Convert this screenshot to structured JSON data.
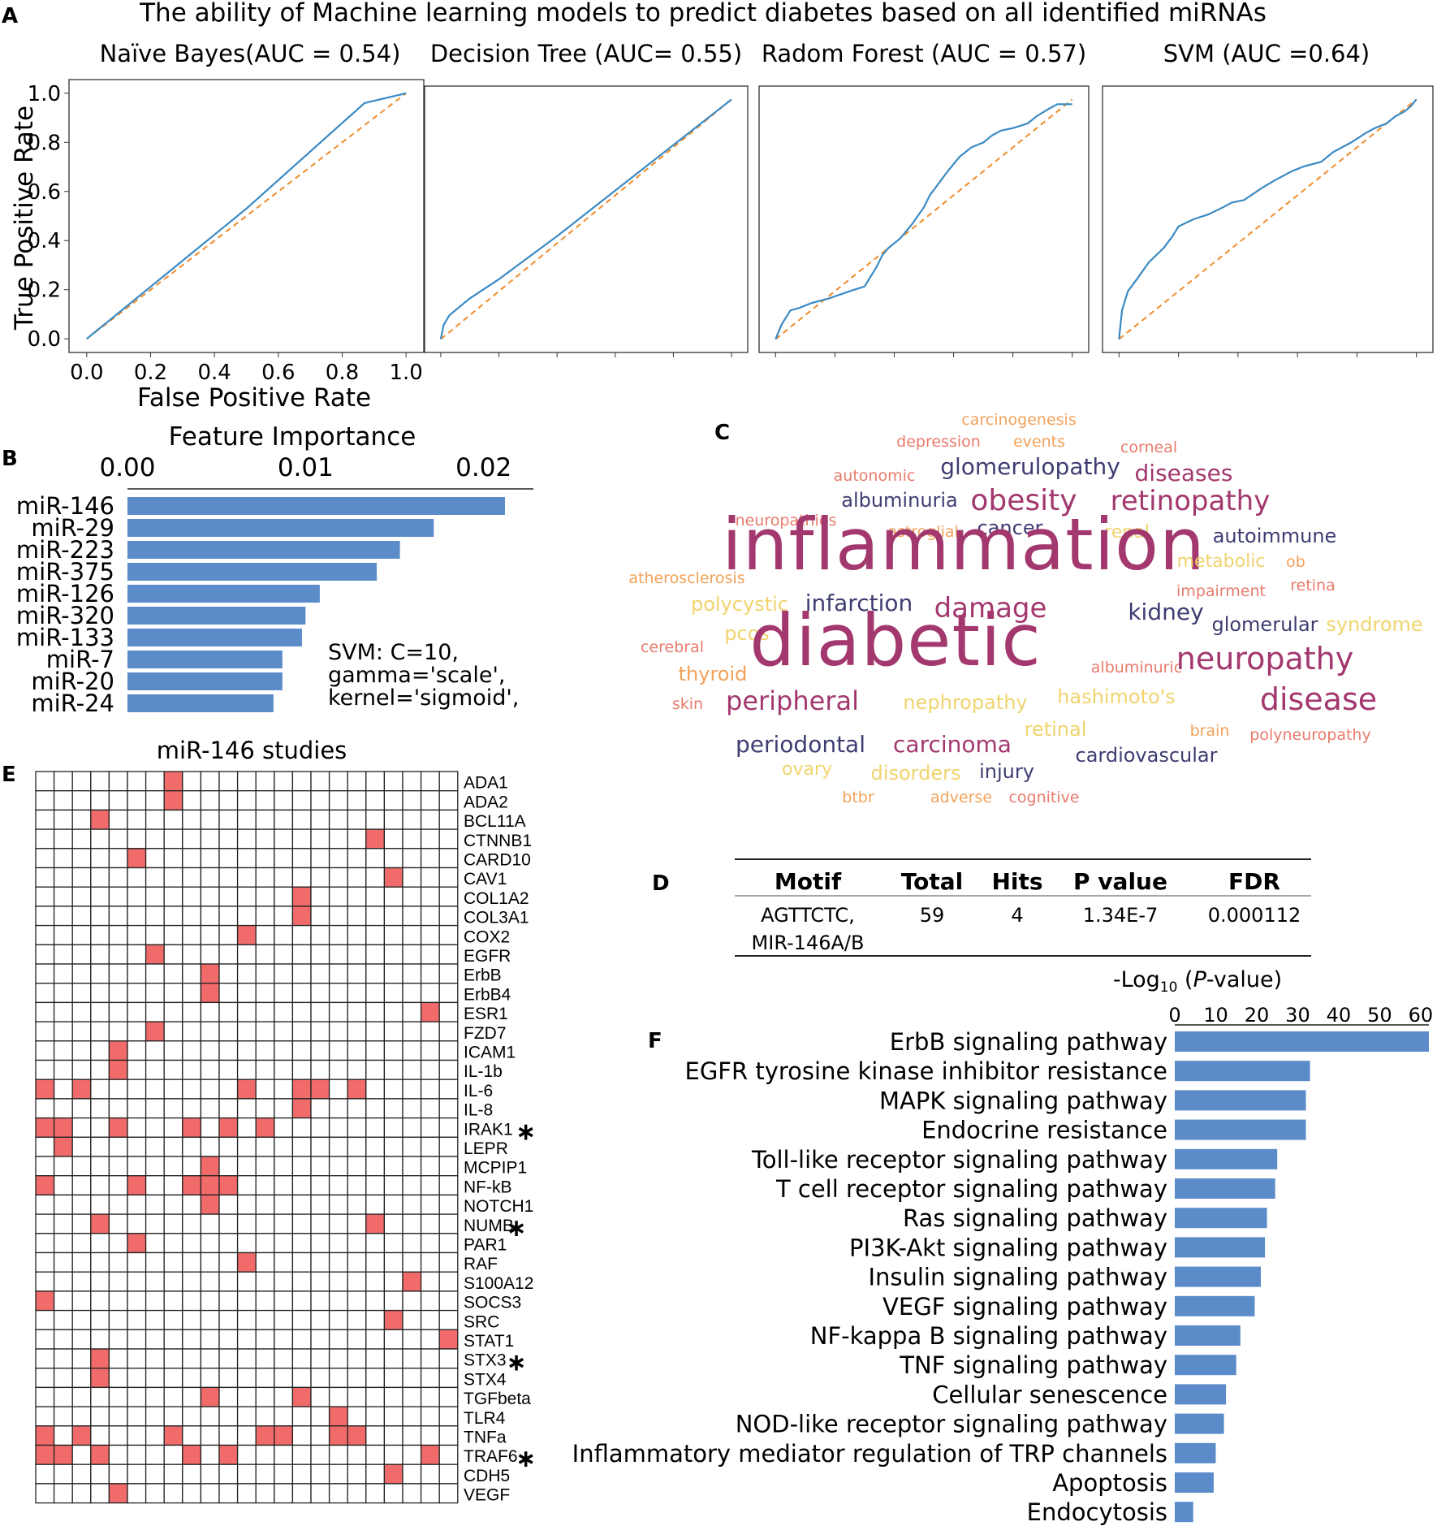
{
  "colors": {
    "roc_line": "#3b8ac4",
    "diagonal": "#f08c2b",
    "bar": "#5b8cc9",
    "heat_on": "#f26b6b",
    "heat_off": "#ffffff",
    "wc_purple": "#a3386f",
    "wc_navy": "#3e3d72",
    "wc_salmon": "#e77b6c",
    "wc_yellow": "#f0d46e",
    "wc_orange": "#f2a25a"
  },
  "panel_labels": {
    "a": "A",
    "b": "B",
    "c": "C",
    "d": "D",
    "e": "E",
    "f": "F"
  },
  "chart_data": [
    {
      "panel": "A",
      "type": "line",
      "title": "The ability of Machine learning models to predict diabetes based on all identified miRNAs",
      "xlabel": "False Positive Rate",
      "ylabel": "True Positive Rate",
      "xlim": [
        0,
        1
      ],
      "ylim": [
        0,
        1
      ],
      "ticks": [
        "0.0",
        "0.2",
        "0.4",
        "0.6",
        "0.8",
        "1.0"
      ],
      "subplots": [
        {
          "title": "Naïve Bayes(AUC = 0.54)",
          "x": [
            0,
            0.5,
            0.87,
            1.0
          ],
          "y": [
            0,
            0.53,
            0.96,
            1.0
          ]
        },
        {
          "title": "Decision Tree (AUC= 0.55)",
          "x": [
            0,
            0.01,
            0.03,
            0.06,
            0.1,
            0.2,
            0.4,
            0.6,
            0.8,
            1.0
          ],
          "y": [
            0,
            0.06,
            0.1,
            0.13,
            0.17,
            0.25,
            0.43,
            0.62,
            0.81,
            1.0
          ]
        },
        {
          "title": "Radom Forest (AUC = 0.57)",
          "x": [
            0,
            0.02,
            0.05,
            0.08,
            0.12,
            0.18,
            0.25,
            0.3,
            0.34,
            0.36,
            0.38,
            0.42,
            0.46,
            0.5,
            0.52,
            0.55,
            0.58,
            0.6,
            0.62,
            0.64,
            0.66,
            0.7,
            0.73,
            0.76,
            0.8,
            0.85,
            0.88,
            0.92,
            0.95,
            1.0
          ],
          "y": [
            0,
            0.06,
            0.12,
            0.13,
            0.15,
            0.17,
            0.2,
            0.22,
            0.3,
            0.35,
            0.38,
            0.42,
            0.48,
            0.55,
            0.6,
            0.65,
            0.7,
            0.73,
            0.76,
            0.78,
            0.8,
            0.82,
            0.85,
            0.87,
            0.88,
            0.9,
            0.93,
            0.96,
            0.98,
            0.98
          ]
        },
        {
          "title": "SVM (AUC =0.64)",
          "x": [
            0,
            0.01,
            0.03,
            0.06,
            0.1,
            0.15,
            0.18,
            0.2,
            0.25,
            0.3,
            0.35,
            0.38,
            0.42,
            0.48,
            0.52,
            0.58,
            0.62,
            0.68,
            0.72,
            0.78,
            0.83,
            0.86,
            0.9,
            0.93,
            0.96,
            0.98,
            1.0
          ],
          "y": [
            0,
            0.12,
            0.2,
            0.25,
            0.32,
            0.38,
            0.43,
            0.47,
            0.5,
            0.52,
            0.55,
            0.57,
            0.58,
            0.63,
            0.66,
            0.7,
            0.72,
            0.74,
            0.78,
            0.82,
            0.86,
            0.88,
            0.9,
            0.93,
            0.95,
            0.97,
            1.0
          ]
        }
      ]
    },
    {
      "panel": "B",
      "type": "bar",
      "orientation": "horizontal",
      "title": "Feature Importance",
      "xlim": [
        0,
        0.0212
      ],
      "ticks": [
        "0.00",
        "0.01",
        "0.02"
      ],
      "categories": [
        "miR-146",
        "miR-29",
        "miR-223",
        "miR-375",
        "miR-126",
        "miR-320",
        "miR-133",
        "miR-7",
        "miR-20",
        "miR-24"
      ],
      "values": [
        0.0212,
        0.0172,
        0.0153,
        0.014,
        0.0108,
        0.01,
        0.0098,
        0.0087,
        0.0087,
        0.0082
      ],
      "annotation": [
        "SVM: C=10,",
        "gamma='scale',",
        "kernel='sigmoid',"
      ]
    },
    {
      "panel": "E",
      "type": "heatmap",
      "title": "miR-146 studies",
      "columns": 23,
      "rows": [
        "ADA1",
        "ADA2",
        "BCL11A",
        "CTNNB1",
        "CARD10",
        "CAV1",
        "COL1A2",
        "COL3A1",
        "COX2",
        "EGFR",
        "ErbB",
        "ErbB4",
        "ESR1",
        "FZD7",
        "ICAM1",
        "IL-1b",
        "IL-6",
        "IL-8",
        "IRAK1",
        "LEPR",
        "MCPIP1",
        "NF-kB",
        "NOTCH1",
        "NUMB",
        "PAR1",
        "RAF",
        "S100A12",
        "SOCS3",
        "SRC",
        "STAT1",
        "STX3",
        "STX4",
        "TGFbeta",
        "TLR4",
        "TNFa",
        "TRAF6",
        "CDH5",
        "VEGF"
      ],
      "starred": [
        "IRAK1",
        "NUMB",
        "STX3",
        "TRAF6"
      ],
      "star_symbol": "∗",
      "cells": [
        [
          7
        ],
        [
          7
        ],
        [
          3
        ],
        [
          18
        ],
        [
          5
        ],
        [
          19
        ],
        [
          14
        ],
        [
          14
        ],
        [
          11
        ],
        [
          6
        ],
        [
          9
        ],
        [
          9
        ],
        [
          21
        ],
        [
          6
        ],
        [
          4
        ],
        [
          4
        ],
        [
          0,
          2,
          11,
          14,
          15,
          17
        ],
        [
          14
        ],
        [
          0,
          1,
          4,
          8,
          10,
          12
        ],
        [
          1
        ],
        [
          9
        ],
        [
          0,
          5,
          8,
          9,
          10
        ],
        [
          9
        ],
        [
          3,
          18
        ],
        [
          5
        ],
        [
          11
        ],
        [
          20
        ],
        [
          0
        ],
        [
          19
        ],
        [
          22
        ],
        [
          3
        ],
        [
          3
        ],
        [
          9,
          14
        ],
        [
          16
        ],
        [
          0,
          2,
          7,
          12,
          13,
          16,
          17
        ],
        [
          0,
          1,
          3,
          8,
          10,
          21
        ],
        [
          19
        ],
        [
          4
        ]
      ]
    },
    {
      "panel": "F",
      "type": "bar",
      "orientation": "horizontal",
      "title_prefix": "-Log",
      "title_sub": "10",
      "title_open": " (",
      "title_italic": "P",
      "title_suffix": "-value)",
      "xlim": [
        0,
        62
      ],
      "ticks": [
        "0",
        "10",
        "20",
        "30",
        "40",
        "50",
        "60"
      ],
      "categories": [
        "ErbB signaling pathway",
        "EGFR tyrosine kinase inhibitor resistance",
        "MAPK signaling pathway",
        "Endocrine resistance",
        "Toll-like receptor signaling pathway",
        "T cell receptor signaling pathway",
        "Ras signaling pathway",
        "PI3K-Akt signaling pathway",
        "Insulin signaling pathway",
        "VEGF signaling pathway",
        "NF-kappa B signaling pathway",
        "TNF signaling pathway",
        "Cellular senescence",
        "NOD-like receptor signaling pathway",
        "Inflammatory mediator regulation of TRP channels",
        "Apoptosis",
        "Endocytosis"
      ],
      "values": [
        62,
        33,
        32,
        32,
        25,
        24.5,
        22.5,
        22,
        21,
        19.5,
        16,
        15,
        12.5,
        12,
        10,
        9.5,
        4.5
      ]
    }
  ],
  "wordcloud": {
    "panel": "C",
    "words": [
      {
        "text": "carcinogenesis",
        "color": "#f2a25a"
      },
      {
        "text": "depression",
        "color": "#e77b6c"
      },
      {
        "text": "events",
        "color": "#f2a25a"
      },
      {
        "text": "corneal",
        "color": "#e77b6c"
      },
      {
        "text": "autonomic",
        "color": "#e77b6c"
      },
      {
        "text": "glomerulopathy",
        "color": "#3e3d72"
      },
      {
        "text": "diseases",
        "color": "#a3386f"
      },
      {
        "text": "albuminuria",
        "color": "#3e3d72"
      },
      {
        "text": "obesity",
        "color": "#a3386f"
      },
      {
        "text": "retinopathy",
        "color": "#a3386f"
      },
      {
        "text": "neuropathies",
        "color": "#e77b6c"
      },
      {
        "text": "astroglial",
        "color": "#f2a25a"
      },
      {
        "text": "cancer",
        "color": "#3e3d72"
      },
      {
        "text": "renal",
        "color": "#f0d46e"
      },
      {
        "text": "autoimmune",
        "color": "#3e3d72"
      },
      {
        "text": "inflammation",
        "color": "#a3386f"
      },
      {
        "text": "metabolic",
        "color": "#f0d46e"
      },
      {
        "text": "ob",
        "color": "#f2a25a"
      },
      {
        "text": "atherosclerosis",
        "color": "#f2a25a"
      },
      {
        "text": "impairment",
        "color": "#e77b6c"
      },
      {
        "text": "retina",
        "color": "#e77b6c"
      },
      {
        "text": "polycystic",
        "color": "#f0d46e"
      },
      {
        "text": "infarction",
        "color": "#3e3d72"
      },
      {
        "text": "damage",
        "color": "#a3386f"
      },
      {
        "text": "kidney",
        "color": "#3e3d72"
      },
      {
        "text": "glomerular",
        "color": "#3e3d72"
      },
      {
        "text": "syndrome",
        "color": "#f0d46e"
      },
      {
        "text": "cerebral",
        "color": "#e77b6c"
      },
      {
        "text": "pcos",
        "color": "#f0d46e"
      },
      {
        "text": "diabetic",
        "color": "#a3386f"
      },
      {
        "text": "albuminuric",
        "color": "#e77b6c"
      },
      {
        "text": "neuropathy",
        "color": "#a3386f"
      },
      {
        "text": "thyroid",
        "color": "#f2a25a"
      },
      {
        "text": "skin",
        "color": "#e77b6c"
      },
      {
        "text": "peripheral",
        "color": "#a3386f"
      },
      {
        "text": "nephropathy",
        "color": "#f0d46e"
      },
      {
        "text": "hashimoto's",
        "color": "#f0d46e"
      },
      {
        "text": "disease",
        "color": "#a3386f"
      },
      {
        "text": "retinal",
        "color": "#f0d46e"
      },
      {
        "text": "brain",
        "color": "#f2a25a"
      },
      {
        "text": "polyneuropathy",
        "color": "#e77b6c"
      },
      {
        "text": "periodontal",
        "color": "#3e3d72"
      },
      {
        "text": "carcinoma",
        "color": "#a3386f"
      },
      {
        "text": "cardiovascular",
        "color": "#3e3d72"
      },
      {
        "text": "ovary",
        "color": "#f0d46e"
      },
      {
        "text": "disorders",
        "color": "#f0d46e"
      },
      {
        "text": "injury",
        "color": "#3e3d72"
      },
      {
        "text": "btbr",
        "color": "#f2a25a"
      },
      {
        "text": "adverse",
        "color": "#f2a25a"
      },
      {
        "text": "cognitive",
        "color": "#e77b6c"
      }
    ]
  },
  "motif_table": {
    "panel": "D",
    "headers": [
      "Motif",
      "Total",
      "Hits",
      "P value",
      "FDR"
    ],
    "row": {
      "motif_line1": "AGTTCTC,",
      "motif_line2": "MIR-146A/B",
      "total": "59",
      "hits": "4",
      "p_value": "1.34E-7",
      "fdr": "0.000112"
    }
  }
}
